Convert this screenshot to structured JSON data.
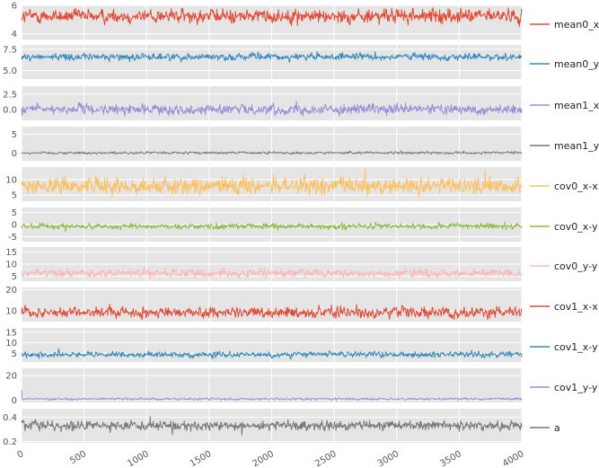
{
  "chart_data": {
    "type": "line",
    "style": "ggplot",
    "grid": true,
    "legend_placement": "right of each subplot",
    "x": {
      "range": [
        0,
        4000
      ],
      "ticks": [
        0,
        500,
        1000,
        1500,
        2000,
        2500,
        3000,
        3500,
        4000
      ],
      "tick_labels": [
        "0",
        "500",
        "1000",
        "1500",
        "2000",
        "2500",
        "3000",
        "3500",
        "4000"
      ]
    },
    "series": [
      {
        "name": "mean0_x",
        "color": "#E24A33",
        "ylim": [
          3.6,
          6.0
        ],
        "yticks": [
          4,
          6
        ],
        "ytick_labels": [
          "4",
          "6"
        ],
        "mean": 5.25,
        "spread": 0.55
      },
      {
        "name": "mean0_y",
        "color": "#348ABD",
        "ylim": [
          4.0,
          8.0
        ],
        "yticks": [
          5.0,
          7.5
        ],
        "ytick_labels": [
          "5.0",
          "7.5"
        ],
        "mean": 6.6,
        "spread": 0.45
      },
      {
        "name": "mean1_x",
        "color": "#988ED5",
        "ylim": [
          -1.8,
          3.8
        ],
        "yticks": [
          0.0,
          2.5
        ],
        "ytick_labels": [
          "0.0",
          "2.5"
        ],
        "mean": 0.0,
        "spread": 0.9
      },
      {
        "name": "mean1_y",
        "color": "#777777",
        "ylim": [
          -2,
          7
        ],
        "yticks": [
          0,
          5
        ],
        "ytick_labels": [
          "0",
          "5"
        ],
        "mean": 0.1,
        "spread": 0.35
      },
      {
        "name": "cov0_x-x",
        "color": "#FBC15E",
        "ylim": [
          3,
          14
        ],
        "yticks": [
          5,
          10
        ],
        "ytick_labels": [
          "5",
          "10"
        ],
        "mean": 8.0,
        "spread": 3.0
      },
      {
        "name": "cov0_x-y",
        "color": "#8EBA42",
        "ylim": [
          -7,
          7
        ],
        "yticks": [
          -5,
          0,
          5
        ],
        "ytick_labels": [
          "-5",
          "0",
          "5"
        ],
        "mean": -0.7,
        "spread": 1.3
      },
      {
        "name": "cov0_y-y",
        "color": "#FFB5B8",
        "ylim": [
          3,
          17
        ],
        "yticks": [
          5,
          10,
          15
        ],
        "ytick_labels": [
          "5",
          "10",
          "15"
        ],
        "mean": 6.3,
        "spread": 1.9
      },
      {
        "name": "cov1_x-x",
        "color": "#E24A33",
        "ylim": [
          5,
          21
        ],
        "yticks": [
          10,
          20
        ],
        "ytick_labels": [
          "10",
          "20"
        ],
        "mean": 9.3,
        "spread": 2.8
      },
      {
        "name": "cov1_x-y",
        "color": "#348ABD",
        "ylim": [
          1,
          17
        ],
        "yticks": [
          5,
          10,
          15
        ],
        "ytick_labels": [
          "5",
          "10",
          "15"
        ],
        "mean": 4.5,
        "spread": 1.5
      },
      {
        "name": "cov1_y-y",
        "color": "#988ED5",
        "ylim": [
          -2,
          26
        ],
        "yticks": [
          0,
          20
        ],
        "ytick_labels": [
          "0",
          "20"
        ],
        "mean": 0.8,
        "spread": 1.0
      },
      {
        "name": "a",
        "color": "#777777",
        "ylim": [
          0.19,
          0.47
        ],
        "yticks": [
          0.2,
          0.4
        ],
        "ytick_labels": [
          "0.2",
          "0.4"
        ],
        "mean": 0.33,
        "spread": 0.045
      }
    ]
  }
}
